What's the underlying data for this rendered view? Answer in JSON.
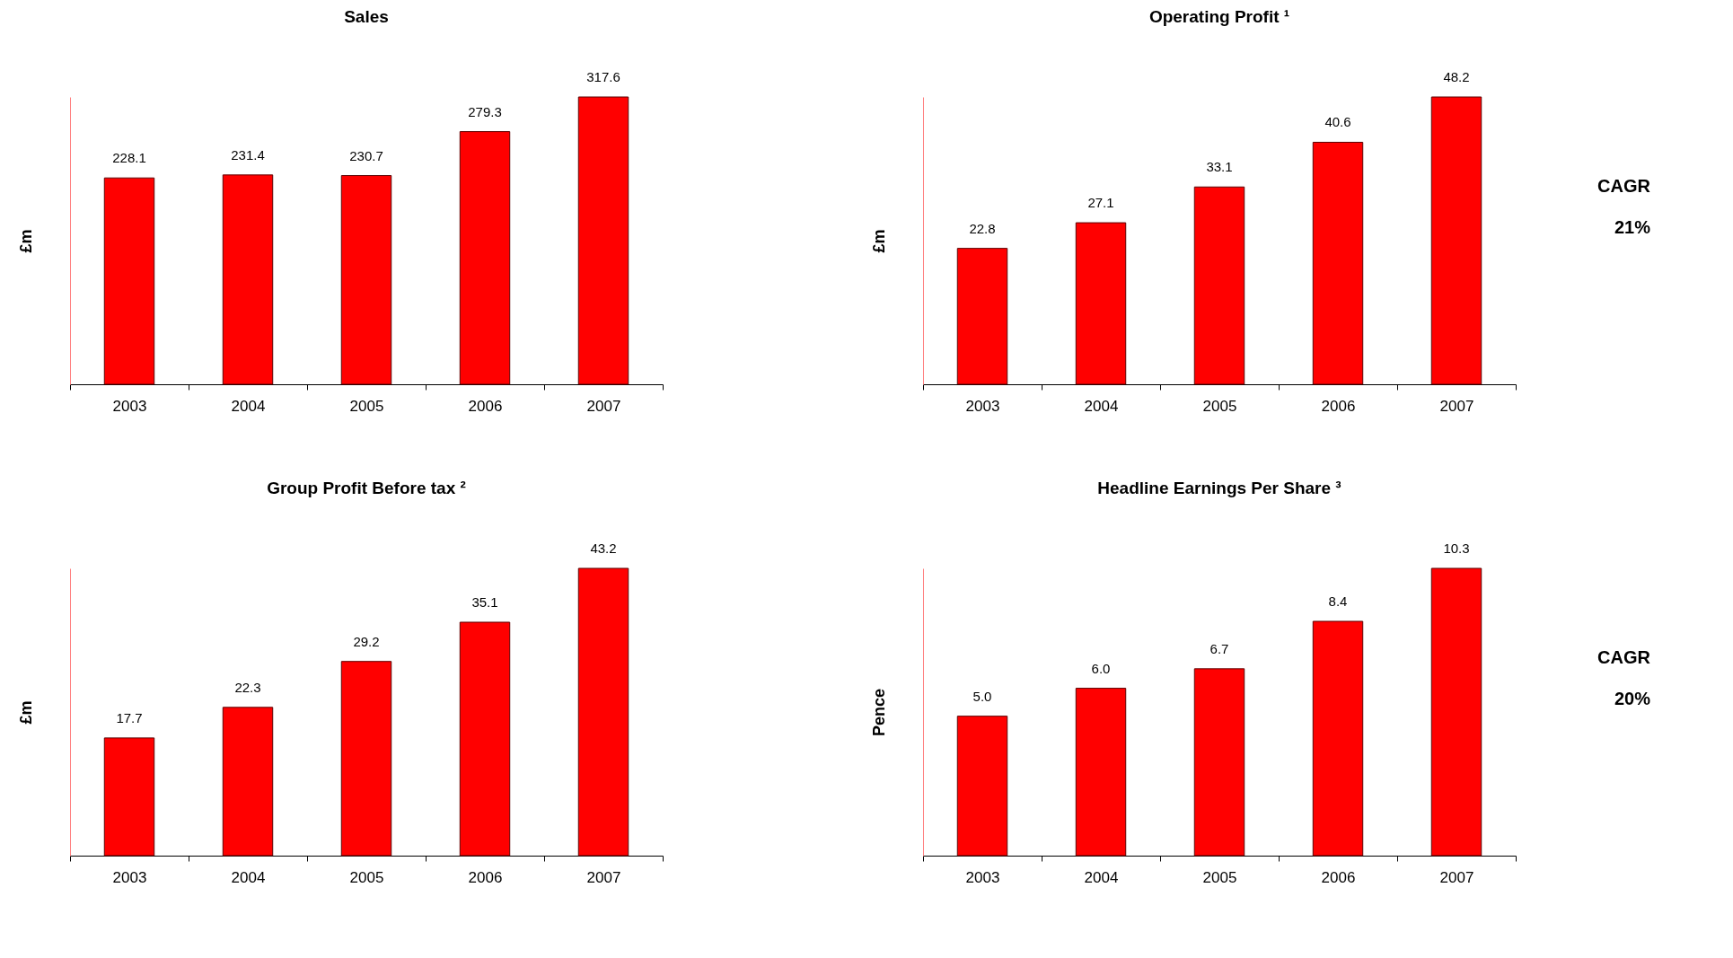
{
  "chart_data": [
    {
      "type": "bar",
      "title": "Sales",
      "ylabel": "£m",
      "categories": [
        "2003",
        "2004",
        "2005",
        "2006",
        "2007"
      ],
      "values": [
        228.1,
        231.4,
        230.7,
        279.3,
        317.6
      ],
      "color": "#ff0000",
      "data_labels": true
    },
    {
      "type": "bar",
      "title": "Operating Profit ¹",
      "ylabel": "£m",
      "categories": [
        "2003",
        "2004",
        "2005",
        "2006",
        "2007"
      ],
      "values": [
        22.8,
        27.1,
        33.1,
        40.6,
        48.2
      ],
      "color": "#ff0000",
      "data_labels": true,
      "annotations": [
        "CAGR",
        "21%"
      ]
    },
    {
      "type": "bar",
      "title": "Group Profit Before tax ²",
      "ylabel": "£m",
      "categories": [
        "2003",
        "2004",
        "2005",
        "2006",
        "2007"
      ],
      "values": [
        17.7,
        22.3,
        29.2,
        35.1,
        43.2
      ],
      "color": "#ff0000",
      "data_labels": true
    },
    {
      "type": "bar",
      "title": "Headline Earnings Per Share ³",
      "ylabel": "Pence",
      "categories": [
        "2003",
        "2004",
        "2005",
        "2006",
        "2007"
      ],
      "values": [
        5.0,
        6.0,
        6.7,
        8.4,
        10.3
      ],
      "value_labels": [
        "5.0",
        "6.0",
        "6.7",
        "8.4",
        "10.3"
      ],
      "color": "#ff0000",
      "annotations": [
        "CAGR",
        "20%"
      ]
    }
  ]
}
